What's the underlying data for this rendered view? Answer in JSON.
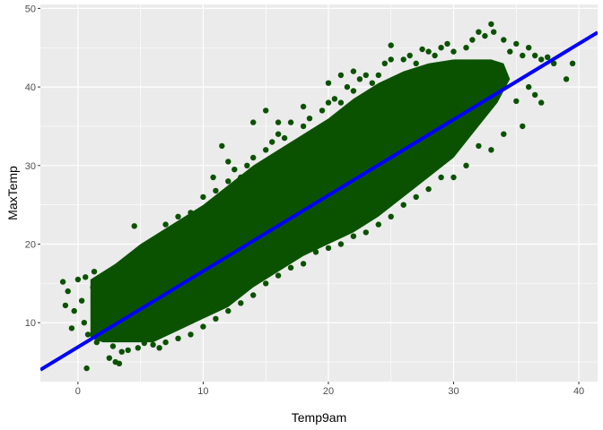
{
  "chart_data": {
    "type": "scatter",
    "title": "",
    "xlabel": "Temp9am",
    "ylabel": "MaxTemp",
    "xlim": [
      -3.0,
      41.5
    ],
    "ylim": [
      2.5,
      50.5
    ],
    "x_ticks": [
      0,
      10,
      20,
      30,
      40
    ],
    "y_ticks": [
      10,
      20,
      30,
      40,
      50
    ],
    "x_tick_labels": [
      "0",
      "10",
      "20",
      "30",
      "40"
    ],
    "y_tick_labels": [
      "10",
      "20",
      "30",
      "40",
      "50"
    ],
    "grid": true,
    "legend": "none",
    "colors": {
      "points": "#0b5200",
      "fit_line": "#0000ff",
      "panel": "#ebebeb",
      "grid": "#ffffff"
    },
    "fit_line": {
      "intercept": 6.9,
      "slope": 0.965
    },
    "band_polygon": [
      [
        1,
        8
      ],
      [
        1,
        15.5
      ],
      [
        3,
        17.5
      ],
      [
        5,
        20
      ],
      [
        8,
        23
      ],
      [
        10,
        25
      ],
      [
        12,
        27.5
      ],
      [
        14,
        30
      ],
      [
        16,
        32
      ],
      [
        18,
        34
      ],
      [
        20,
        36
      ],
      [
        22,
        38.5
      ],
      [
        24,
        40.5
      ],
      [
        26,
        42
      ],
      [
        28,
        43
      ],
      [
        30,
        43.5
      ],
      [
        33,
        43.5
      ],
      [
        34,
        43
      ],
      [
        34.5,
        41
      ],
      [
        33.5,
        38
      ],
      [
        32,
        35
      ],
      [
        30,
        31
      ],
      [
        28,
        28.5
      ],
      [
        26,
        26
      ],
      [
        24,
        23.5
      ],
      [
        22,
        21.5
      ],
      [
        20,
        20
      ],
      [
        18,
        18.5
      ],
      [
        16,
        16.5
      ],
      [
        14,
        14.5
      ],
      [
        12,
        12
      ],
      [
        10,
        10.5
      ],
      [
        8,
        9
      ],
      [
        6,
        7.5
      ],
      [
        4,
        7.5
      ],
      [
        2,
        7.5
      ]
    ],
    "outlier_points": [
      [
        -1.2,
        15.2
      ],
      [
        -1,
        12.2
      ],
      [
        -0.8,
        14
      ],
      [
        -0.5,
        9.3
      ],
      [
        -0.3,
        11.5
      ],
      [
        0,
        15.5
      ],
      [
        0.3,
        12.8
      ],
      [
        0.5,
        10
      ],
      [
        0.6,
        15.8
      ],
      [
        0.8,
        8.5
      ],
      [
        1.2,
        14.5
      ],
      [
        1.3,
        16.5
      ],
      [
        0.7,
        4.2
      ],
      [
        2,
        9
      ],
      [
        2.5,
        5.5
      ],
      [
        3,
        5
      ],
      [
        3.3,
        4.8
      ],
      [
        3.5,
        6.3
      ],
      [
        4,
        6.5
      ],
      [
        5.3,
        7.4
      ],
      [
        6,
        7.2
      ],
      [
        4.2,
        18
      ],
      [
        5,
        18.5
      ],
      [
        4.5,
        22.3
      ],
      [
        5.5,
        19.5
      ],
      [
        6,
        20
      ],
      [
        7,
        22.5
      ],
      [
        8,
        23.5
      ],
      [
        9,
        24
      ],
      [
        10,
        26
      ],
      [
        10.8,
        28.5
      ],
      [
        11,
        26.8
      ],
      [
        12,
        28
      ],
      [
        12.5,
        29.5
      ],
      [
        13,
        28.5
      ],
      [
        13.5,
        30
      ],
      [
        14,
        31
      ],
      [
        15,
        32
      ],
      [
        15.5,
        33
      ],
      [
        16,
        34
      ],
      [
        16.5,
        33.5
      ],
      [
        17,
        35.5
      ],
      [
        18,
        35
      ],
      [
        18.5,
        36
      ],
      [
        19.5,
        37
      ],
      [
        20,
        38
      ],
      [
        20.5,
        38.5
      ],
      [
        21,
        38
      ],
      [
        21.5,
        40
      ],
      [
        22,
        39.5
      ],
      [
        22.5,
        41
      ],
      [
        23,
        41.5
      ],
      [
        23.5,
        40.5
      ],
      [
        24,
        41.5
      ],
      [
        24.5,
        43
      ],
      [
        25,
        45.3
      ],
      [
        26,
        43.5
      ],
      [
        26.5,
        44
      ],
      [
        27,
        43
      ],
      [
        28,
        44.5
      ],
      [
        28.5,
        44
      ],
      [
        29,
        45
      ],
      [
        29.5,
        45.5
      ],
      [
        30,
        44.5
      ],
      [
        31,
        45
      ],
      [
        31.5,
        46
      ],
      [
        32,
        47
      ],
      [
        32.5,
        46.5
      ],
      [
        33,
        48
      ],
      [
        33.2,
        47
      ],
      [
        34,
        46
      ],
      [
        34.5,
        44.5
      ],
      [
        35,
        45.5
      ],
      [
        35.5,
        44
      ],
      [
        36,
        45
      ],
      [
        36.5,
        44
      ],
      [
        37,
        43.5
      ],
      [
        37.5,
        43.8
      ],
      [
        38,
        43
      ],
      [
        39,
        41
      ],
      [
        39.5,
        43
      ],
      [
        36,
        40
      ],
      [
        36.5,
        39
      ],
      [
        37,
        38
      ],
      [
        35.5,
        35
      ],
      [
        35,
        38.2
      ],
      [
        34,
        34
      ],
      [
        33,
        32
      ],
      [
        32,
        32.5
      ],
      [
        31,
        30
      ],
      [
        30,
        28.5
      ],
      [
        29,
        28.5
      ],
      [
        28,
        27
      ],
      [
        27,
        26
      ],
      [
        26,
        25
      ],
      [
        25,
        23.5
      ],
      [
        24,
        22.5
      ],
      [
        23,
        21.5
      ],
      [
        22,
        21
      ],
      [
        21,
        20
      ],
      [
        20,
        19.5
      ],
      [
        19,
        19
      ],
      [
        18,
        17.5
      ],
      [
        17,
        17
      ],
      [
        16,
        16
      ],
      [
        15,
        15
      ],
      [
        14,
        13.5
      ],
      [
        13,
        12.5
      ],
      [
        12,
        11.5
      ],
      [
        11,
        10.5
      ],
      [
        10,
        9.5
      ],
      [
        9,
        8.5
      ],
      [
        8,
        8
      ],
      [
        7,
        7.5
      ],
      [
        6.5,
        6.8
      ],
      [
        4.8,
        6.8
      ],
      [
        2.8,
        7
      ],
      [
        1.5,
        7.5
      ],
      [
        14,
        35.5
      ],
      [
        15,
        37
      ],
      [
        12,
        30.5
      ],
      [
        11.5,
        32.5
      ],
      [
        16,
        35.5
      ],
      [
        18,
        37.5
      ],
      [
        20,
        40.5
      ],
      [
        21,
        41.5
      ],
      [
        22,
        42
      ],
      [
        25,
        43.5
      ],
      [
        27.5,
        44.8
      ]
    ]
  }
}
